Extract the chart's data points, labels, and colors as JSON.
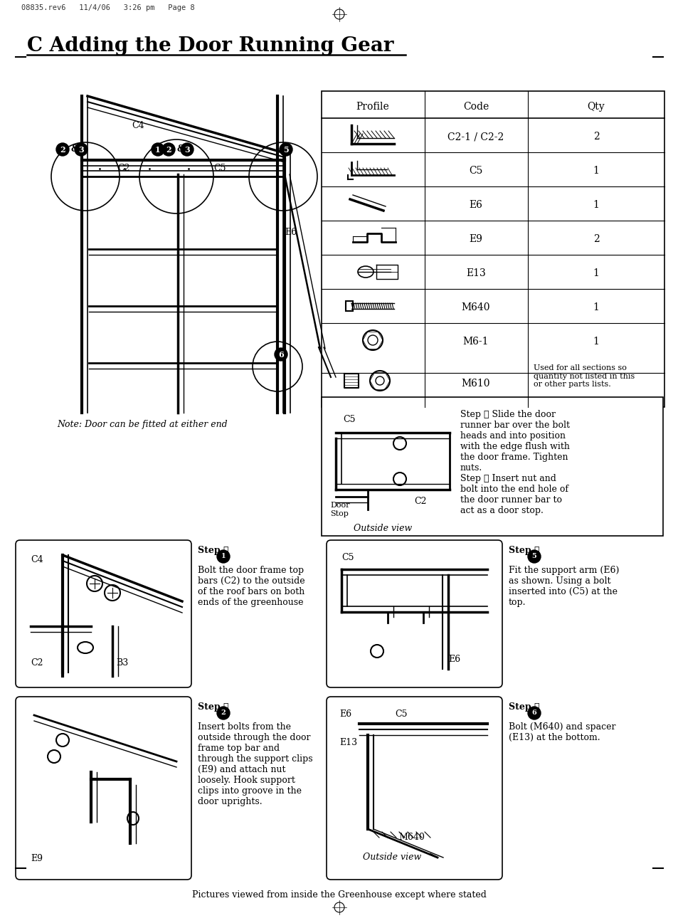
{
  "title": "C Adding the Door Running Gear",
  "header_text": "08835.rev6   11/4/06   3:26 pm   Page 8",
  "bg_color": "#ffffff",
  "table_headers": [
    "Profile",
    "Code",
    "Qty"
  ],
  "table_codes": [
    "C2-1 / C2-2",
    "C5",
    "E6",
    "E9",
    "E13",
    "M640",
    "M6-1",
    "M610"
  ],
  "table_qtys": [
    "2",
    "1",
    "1",
    "2",
    "1",
    "1",
    "1",
    "Used for all sections so\nquantity not listed in this\nor other parts lists."
  ],
  "step34_text_1": "Step ④ Slide the door\nrunner bar over the bolt\nheads and into position\nwith the edge flush with\nthe door frame. Tighten\nnuts.",
  "step34_text_2": "Step ⑤ Insert nut and\nbolt into the end hole of\nthe door runner bar to\nact as a door stop.",
  "step1_title": "Step ①",
  "step1_body": "Bolt the door frame top\nbars (C2) to the outside\nof the roof bars on both\nends of the greenhouse",
  "step2_title": "Step ③",
  "step2_body": "Insert bolts from the\noutside through the door\nframe top bar and\nthrough the support clips\n(E9) and attach nut\nloosely. Hook support\nclips into groove in the\ndoor uprights.",
  "step5_title": "Step ⑥",
  "step5_body": "Fit the support arm (E6)\nas shown. Using a bolt\ninserted into (C5) at the\ntop.",
  "step6_title": "Step ⑦",
  "step6_body": "Bolt (M640) and spacer\n(E13) at the bottom.",
  "note_text": "Note: Door can be fitted at either end",
  "footer_text": "Pictures viewed from inside the Greenhouse except where stated",
  "outside_view": "Outside view"
}
